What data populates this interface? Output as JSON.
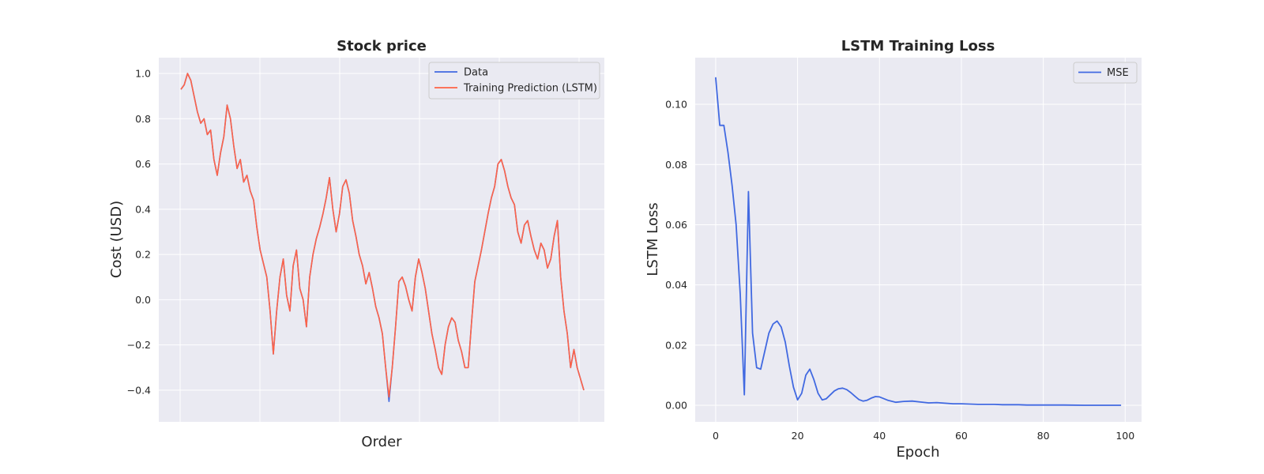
{
  "chart_data": [
    {
      "type": "line",
      "title": "Stock price",
      "xlabel": "Order",
      "ylabel": "Cost (USD)",
      "ylim": [
        -0.54,
        1.07
      ],
      "yticks": [
        -0.4,
        -0.2,
        0.0,
        0.2,
        0.4,
        0.6,
        0.8,
        1.0
      ],
      "ytick_labels": [
        "−0.4",
        "−0.2",
        "0.0",
        "0.2",
        "0.4",
        "0.6",
        "0.8",
        "1.0"
      ],
      "xtick_labels": [],
      "grid": true,
      "legend": "top-right",
      "series": [
        {
          "name": "Data",
          "color": "#4169e1",
          "values": [
            0.93,
            0.95,
            1.0,
            0.97,
            0.9,
            0.83,
            0.78,
            0.8,
            0.73,
            0.75,
            0.62,
            0.55,
            0.65,
            0.72,
            0.86,
            0.8,
            0.68,
            0.58,
            0.62,
            0.52,
            0.55,
            0.48,
            0.44,
            0.32,
            0.22,
            0.16,
            0.1,
            -0.05,
            -0.24,
            -0.05,
            0.1,
            0.18,
            0.02,
            -0.05,
            0.15,
            0.22,
            0.05,
            0.0,
            -0.12,
            0.1,
            0.2,
            0.27,
            0.32,
            0.38,
            0.45,
            0.54,
            0.4,
            0.3,
            0.38,
            0.5,
            0.53,
            0.47,
            0.35,
            0.28,
            0.2,
            0.15,
            0.07,
            0.12,
            0.05,
            -0.03,
            -0.08,
            -0.15,
            -0.3,
            -0.45,
            -0.3,
            -0.12,
            0.08,
            0.1,
            0.06,
            0.0,
            -0.05,
            0.1,
            0.18,
            0.12,
            0.05,
            -0.05,
            -0.15,
            -0.22,
            -0.3,
            -0.33,
            -0.2,
            -0.12,
            -0.08,
            -0.1,
            -0.18,
            -0.23,
            -0.3,
            -0.3,
            -0.1,
            0.08,
            0.15,
            0.22,
            0.3,
            0.38,
            0.45,
            0.5,
            0.6,
            0.62,
            0.57,
            0.5,
            0.45,
            0.42,
            0.3,
            0.25,
            0.33,
            0.35,
            0.28,
            0.22,
            0.18,
            0.25,
            0.22,
            0.14,
            0.18,
            0.28,
            0.35,
            0.1,
            -0.05,
            -0.15,
            -0.3,
            -0.22,
            -0.3,
            -0.35,
            -0.4
          ]
        },
        {
          "name": "Training Prediction (LSTM)",
          "color": "#ff6347",
          "values": [
            0.93,
            0.95,
            1.0,
            0.97,
            0.9,
            0.83,
            0.78,
            0.8,
            0.73,
            0.75,
            0.62,
            0.55,
            0.65,
            0.72,
            0.86,
            0.8,
            0.68,
            0.58,
            0.62,
            0.52,
            0.55,
            0.48,
            0.44,
            0.32,
            0.22,
            0.16,
            0.1,
            -0.05,
            -0.24,
            -0.05,
            0.1,
            0.18,
            0.02,
            -0.05,
            0.15,
            0.22,
            0.05,
            0.0,
            -0.12,
            0.1,
            0.2,
            0.27,
            0.32,
            0.38,
            0.45,
            0.54,
            0.4,
            0.3,
            0.38,
            0.5,
            0.53,
            0.47,
            0.35,
            0.28,
            0.2,
            0.15,
            0.07,
            0.12,
            0.05,
            -0.03,
            -0.08,
            -0.15,
            -0.3,
            -0.43,
            -0.3,
            -0.12,
            0.08,
            0.1,
            0.06,
            0.0,
            -0.05,
            0.1,
            0.18,
            0.12,
            0.05,
            -0.05,
            -0.15,
            -0.22,
            -0.3,
            -0.33,
            -0.2,
            -0.12,
            -0.08,
            -0.1,
            -0.18,
            -0.23,
            -0.3,
            -0.3,
            -0.1,
            0.08,
            0.15,
            0.22,
            0.3,
            0.38,
            0.45,
            0.5,
            0.6,
            0.62,
            0.57,
            0.5,
            0.45,
            0.42,
            0.3,
            0.25,
            0.33,
            0.35,
            0.28,
            0.22,
            0.18,
            0.25,
            0.22,
            0.14,
            0.18,
            0.28,
            0.35,
            0.1,
            -0.05,
            -0.15,
            -0.3,
            -0.22,
            -0.3,
            -0.35,
            -0.4
          ]
        }
      ]
    },
    {
      "type": "line",
      "title": "LSTM Training Loss",
      "xlabel": "Epoch",
      "ylabel": "LSTM Loss",
      "xlim": [
        -5,
        104
      ],
      "ylim": [
        -0.0055,
        0.1155
      ],
      "xticks": [
        0,
        20,
        40,
        60,
        80,
        100
      ],
      "xtick_labels": [
        "0",
        "20",
        "40",
        "60",
        "80",
        "100"
      ],
      "yticks": [
        0.0,
        0.02,
        0.04,
        0.06,
        0.08,
        0.1
      ],
      "ytick_labels": [
        "0.00",
        "0.02",
        "0.04",
        "0.06",
        "0.08",
        "0.10"
      ],
      "grid": true,
      "legend": "top-right",
      "series": [
        {
          "name": "MSE",
          "color": "#4169e1",
          "x": [
            0,
            1,
            2,
            3,
            4,
            5,
            6,
            7,
            8,
            9,
            10,
            11,
            12,
            13,
            14,
            15,
            16,
            17,
            18,
            19,
            20,
            21,
            22,
            23,
            24,
            25,
            26,
            27,
            28,
            29,
            30,
            31,
            32,
            33,
            34,
            35,
            36,
            37,
            38,
            39,
            40,
            42,
            44,
            46,
            48,
            50,
            52,
            54,
            56,
            58,
            60,
            62,
            64,
            66,
            68,
            70,
            72,
            74,
            76,
            78,
            80,
            85,
            90,
            95,
            99
          ],
          "values": [
            0.109,
            0.093,
            0.093,
            0.084,
            0.073,
            0.06,
            0.037,
            0.0035,
            0.071,
            0.024,
            0.0125,
            0.012,
            0.018,
            0.024,
            0.027,
            0.028,
            0.026,
            0.021,
            0.013,
            0.006,
            0.0018,
            0.004,
            0.01,
            0.012,
            0.0085,
            0.004,
            0.0018,
            0.0022,
            0.0035,
            0.0048,
            0.0055,
            0.0057,
            0.0052,
            0.0042,
            0.003,
            0.0019,
            0.0014,
            0.0017,
            0.0024,
            0.0029,
            0.0028,
            0.0017,
            0.001,
            0.0013,
            0.0014,
            0.0011,
            0.0008,
            0.0009,
            0.0007,
            0.0005,
            0.0005,
            0.0004,
            0.0003,
            0.0003,
            0.0003,
            0.0002,
            0.0002,
            0.0002,
            0.0001,
            0.0001,
            0.0001,
            0.0001,
            0.0,
            0.0,
            0.0
          ]
        }
      ]
    }
  ]
}
